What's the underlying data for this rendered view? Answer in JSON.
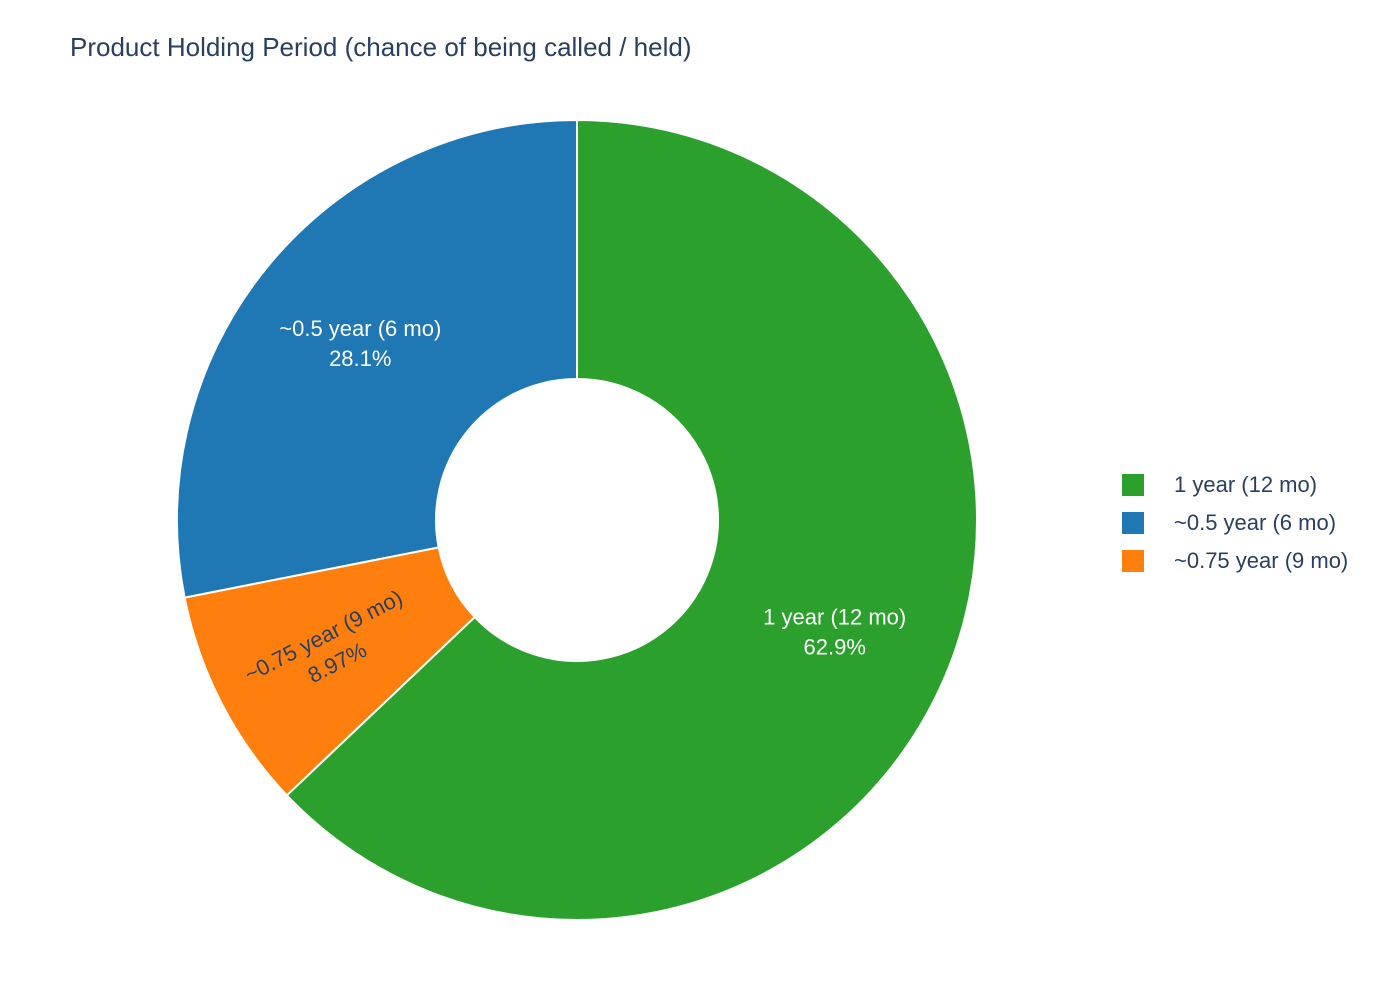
{
  "chart_data": {
    "type": "pie",
    "hole": true,
    "title": "Product Holding Period (chance of being called / held)",
    "slices": [
      {
        "label": "1 year (12 mo)",
        "value": 62.9,
        "percent_text": "62.9%",
        "color": "#2ca02c",
        "text_color": "#ffffff"
      },
      {
        "label": "~0.75 year (9 mo)",
        "value": 8.97,
        "percent_text": "8.97%",
        "color": "#ff7f0e",
        "text_color": "#2a3f5f"
      },
      {
        "label": "~0.5 year (6 mo)",
        "value": 28.1,
        "percent_text": "28.1%",
        "color": "#1f77b4",
        "text_color": "#ffffff"
      }
    ],
    "legend": {
      "placement": "right",
      "items": [
        {
          "label": "1 year (12 mo)",
          "color": "#2ca02c"
        },
        {
          "label": "~0.5 year (6 mo)",
          "color": "#1f77b4"
        },
        {
          "label": "~0.75 year (9 mo)",
          "color": "#ff7f0e"
        }
      ]
    }
  }
}
